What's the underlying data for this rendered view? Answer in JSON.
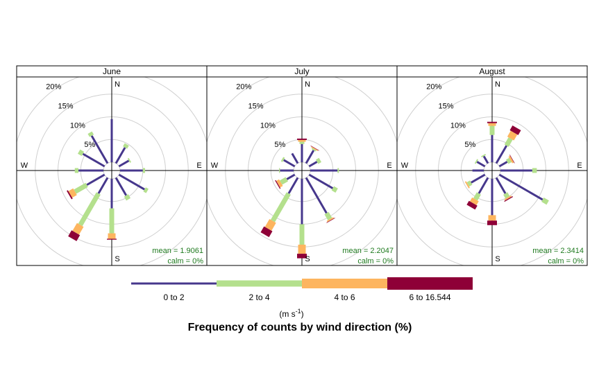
{
  "chart_data": {
    "type": "windrose",
    "title": "Frequency of counts by wind direction (%)",
    "unit_label": "(m s",
    "unit_exp": "-1",
    "compass": {
      "n": "N",
      "e": "E",
      "s": "S",
      "w": "W"
    },
    "rings": [
      5,
      10,
      15,
      20
    ],
    "ring_labels": [
      "5%",
      "10%",
      "15%",
      "20%"
    ],
    "bins": [
      {
        "label": "0 to 2",
        "color": "#46378C"
      },
      {
        "label": "2 to 4",
        "color": "#B4E08D"
      },
      {
        "label": "4 to 6",
        "color": "#FDB55F"
      },
      {
        "label": "6 to 16.544",
        "color": "#8E0037"
      }
    ],
    "directions": [
      0,
      30,
      60,
      90,
      120,
      150,
      180,
      210,
      240,
      270,
      300,
      330
    ],
    "panels": [
      {
        "name": "June",
        "mean": "mean = 1.9061",
        "calm": "calm = 0%",
        "freq": [
          [
            9.5,
            0,
            0,
            0
          ],
          [
            4,
            0.8,
            0,
            0
          ],
          [
            2.5,
            0.3,
            0,
            0
          ],
          [
            5,
            0.5,
            0,
            0
          ],
          [
            6.5,
            0.7,
            0,
            0
          ],
          [
            4.5,
            1,
            0,
            0
          ],
          [
            6.5,
            5.5,
            1.2,
            0.2
          ],
          [
            4,
            8,
            2,
            1.5
          ],
          [
            4.5,
            3,
            1.2,
            0.3
          ],
          [
            5.5,
            0.8,
            0,
            0
          ],
          [
            5.5,
            1,
            0,
            0
          ],
          [
            7,
            0.8,
            0,
            0
          ]
        ]
      },
      {
        "name": "July",
        "mean": "mean = 2.2047",
        "calm": "calm = 0%",
        "freq": [
          [
            4,
            0.5,
            0.4,
            0.3
          ],
          [
            3.3,
            0.3,
            0.2,
            0.1
          ],
          [
            2,
            0.8,
            0,
            0
          ],
          [
            6,
            0.3,
            0,
            0
          ],
          [
            6,
            1,
            0,
            0
          ],
          [
            9,
            1.5,
            0.3,
            0.1
          ],
          [
            10,
            4.5,
            2,
            1
          ],
          [
            4,
            7,
            2,
            1.5
          ],
          [
            2,
            1.5,
            0.7,
            0.2
          ],
          [
            3,
            0.2,
            0,
            0
          ],
          [
            2.8,
            0.4,
            0,
            0
          ],
          [
            2.5,
            0,
            0,
            0
          ]
        ]
      },
      {
        "name": "August",
        "mean": "mean = 2.3414",
        "calm": "calm = 0%",
        "freq": [
          [
            6,
            2,
            0.6,
            0.3
          ],
          [
            4.5,
            1.8,
            1.5,
            1.2
          ],
          [
            2,
            0.8,
            0.4,
            0.1
          ],
          [
            7,
            1,
            0,
            0
          ],
          [
            11,
            1.3,
            0,
            0
          ],
          [
            4,
            1,
            0.3,
            0.2
          ],
          [
            8,
            0,
            1.2,
            1
          ],
          [
            4,
            1.5,
            1,
            1
          ],
          [
            3.5,
            0.8,
            0.3,
            0
          ],
          [
            2.5,
            0,
            0,
            0
          ],
          [
            2,
            0.3,
            0,
            0
          ],
          [
            1.8,
            0.3,
            0,
            0
          ]
        ]
      }
    ]
  }
}
